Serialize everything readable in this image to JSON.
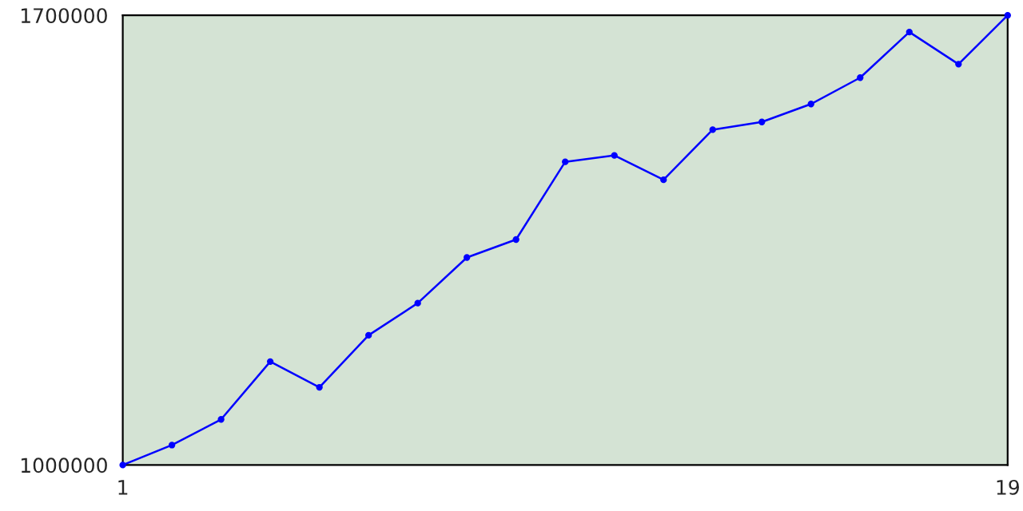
{
  "chart_data": {
    "type": "line",
    "x": [
      1,
      2,
      3,
      4,
      5,
      6,
      7,
      8,
      9,
      10,
      11,
      12,
      13,
      14,
      15,
      16,
      17,
      18,
      19
    ],
    "series": [
      {
        "color": "#0000ff",
        "values": [
          1000000,
          1031000,
          1071000,
          1161000,
          1121000,
          1202000,
          1252000,
          1323000,
          1351000,
          1472000,
          1482000,
          1444000,
          1522000,
          1534000,
          1562000,
          1603000,
          1674000,
          1624000,
          1700000
        ]
      }
    ],
    "xlim": [
      1,
      19
    ],
    "xticks": [
      1,
      19
    ],
    "ylim": [
      1000000,
      1700000
    ],
    "yticks": [
      1000000,
      1700000
    ],
    "marker": "circle",
    "line_style": "solid"
  }
}
